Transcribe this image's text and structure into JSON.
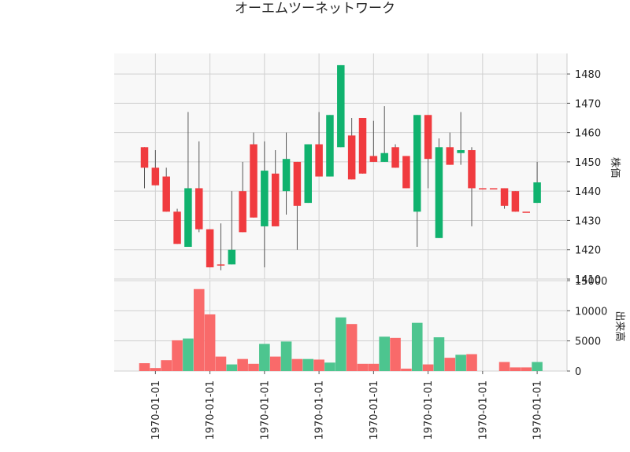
{
  "chart_data": {
    "type": "candlestick",
    "title": "オーエムツーネットワーク",
    "price_panel": {
      "ylabel": "株価",
      "ylim": [
        1410,
        1487
      ],
      "yticks": [
        1410,
        1420,
        1430,
        1440,
        1450,
        1460,
        1470,
        1480
      ],
      "grid": true
    },
    "volume_panel": {
      "ylabel": "出来高",
      "ylim": [
        0,
        15000
      ],
      "yticks": [
        0,
        5000,
        10000,
        15000
      ],
      "grid": true
    },
    "x_tick_labels": [
      "1970-01-01",
      "1970-01-01",
      "1970-01-01",
      "1970-01-01",
      "1970-01-01",
      "1970-01-01",
      "1970-01-01",
      "1970-01-01"
    ],
    "x_tick_positions": [
      1,
      6,
      11,
      16,
      21,
      26,
      31,
      36
    ],
    "colors": {
      "up": "#10b26e",
      "down": "#f03b3f",
      "up_volume": "#4dc58f",
      "down_volume": "#f96a6a",
      "panel_bg": "#f8f8f8",
      "grid": "#d0d0d0"
    },
    "candles": [
      {
        "i": 0,
        "open": 1455,
        "high": 1455,
        "low": 1441,
        "close": 1448,
        "volume": 1300
      },
      {
        "i": 1,
        "open": 1448,
        "high": 1454,
        "low": 1442,
        "close": 1442,
        "volume": 500
      },
      {
        "i": 2,
        "open": 1445,
        "high": 1448,
        "low": 1433,
        "close": 1433,
        "volume": 1800
      },
      {
        "i": 3,
        "open": 1433,
        "high": 1434,
        "low": 1422,
        "close": 1422,
        "volume": 5100
      },
      {
        "i": 4,
        "open": 1421,
        "high": 1467,
        "low": 1421,
        "close": 1441,
        "volume": 5400
      },
      {
        "i": 5,
        "open": 1441,
        "high": 1457,
        "low": 1426,
        "close": 1427,
        "volume": 13600
      },
      {
        "i": 6,
        "open": 1427,
        "high": 1427,
        "low": 1414,
        "close": 1414,
        "volume": 9400
      },
      {
        "i": 7,
        "open": 1415,
        "high": 1429,
        "low": 1413,
        "close": 1415,
        "volume": 2400
      },
      {
        "i": 8,
        "open": 1415,
        "high": 1440,
        "low": 1415,
        "close": 1420,
        "volume": 1100
      },
      {
        "i": 9,
        "open": 1440,
        "high": 1450,
        "low": 1426,
        "close": 1426,
        "volume": 2000
      },
      {
        "i": 10,
        "open": 1456,
        "high": 1460,
        "low": 1431,
        "close": 1431,
        "volume": 1200
      },
      {
        "i": 11,
        "open": 1428,
        "high": 1457,
        "low": 1414,
        "close": 1447,
        "volume": 4500
      },
      {
        "i": 12,
        "open": 1446,
        "high": 1454,
        "low": 1428,
        "close": 1428,
        "volume": 2400
      },
      {
        "i": 13,
        "open": 1440,
        "high": 1460,
        "low": 1432,
        "close": 1451,
        "volume": 4900
      },
      {
        "i": 14,
        "open": 1450,
        "high": 1450,
        "low": 1420,
        "close": 1435,
        "volume": 2000
      },
      {
        "i": 15,
        "open": 1436,
        "high": 1456,
        "low": 1436,
        "close": 1456,
        "volume": 2000
      },
      {
        "i": 16,
        "open": 1456,
        "high": 1467,
        "low": 1445,
        "close": 1445,
        "volume": 1900
      },
      {
        "i": 17,
        "open": 1445,
        "high": 1466,
        "low": 1445,
        "close": 1466,
        "volume": 1400
      },
      {
        "i": 18,
        "open": 1455,
        "high": 1483,
        "low": 1455,
        "close": 1483,
        "volume": 8900
      },
      {
        "i": 19,
        "open": 1459,
        "high": 1465,
        "low": 1444,
        "close": 1444,
        "volume": 7800
      },
      {
        "i": 20,
        "open": 1465,
        "high": 1465,
        "low": 1446,
        "close": 1446,
        "volume": 1200
      },
      {
        "i": 21,
        "open": 1452,
        "high": 1464,
        "low": 1450,
        "close": 1450,
        "volume": 1200
      },
      {
        "i": 22,
        "open": 1450,
        "high": 1469,
        "low": 1450,
        "close": 1453,
        "volume": 5700
      },
      {
        "i": 23,
        "open": 1455,
        "high": 1456,
        "low": 1448,
        "close": 1448,
        "volume": 5500
      },
      {
        "i": 24,
        "open": 1452,
        "high": 1452,
        "low": 1441,
        "close": 1441,
        "volume": 400
      },
      {
        "i": 25,
        "open": 1433,
        "high": 1466,
        "low": 1421,
        "close": 1466,
        "volume": 8000
      },
      {
        "i": 26,
        "open": 1466,
        "high": 1466,
        "low": 1441,
        "close": 1451,
        "volume": 1100
      },
      {
        "i": 27,
        "open": 1424,
        "high": 1458,
        "low": 1424,
        "close": 1455,
        "volume": 5600
      },
      {
        "i": 28,
        "open": 1455,
        "high": 1460,
        "low": 1449,
        "close": 1449,
        "volume": 2200
      },
      {
        "i": 29,
        "open": 1453,
        "high": 1467,
        "low": 1449,
        "close": 1454,
        "volume": 2700
      },
      {
        "i": 30,
        "open": 1454,
        "high": 1455,
        "low": 1428,
        "close": 1441,
        "volume": 2800
      },
      {
        "i": 31,
        "open": 1441,
        "high": 1441,
        "low": 1441,
        "close": 1441,
        "volume": 0
      },
      {
        "i": 32,
        "open": 1441,
        "high": 1441,
        "low": 1441,
        "close": 1441,
        "volume": 0
      },
      {
        "i": 33,
        "open": 1441,
        "high": 1441,
        "low": 1434,
        "close": 1435,
        "volume": 1500
      },
      {
        "i": 34,
        "open": 1440,
        "high": 1440,
        "low": 1433,
        "close": 1433,
        "volume": 600
      },
      {
        "i": 35,
        "open": 1433,
        "high": 1433,
        "low": 1433,
        "close": 1433,
        "volume": 600
      },
      {
        "i": 36,
        "open": 1436,
        "high": 1450,
        "low": 1436,
        "close": 1443,
        "volume": 1500
      }
    ]
  }
}
